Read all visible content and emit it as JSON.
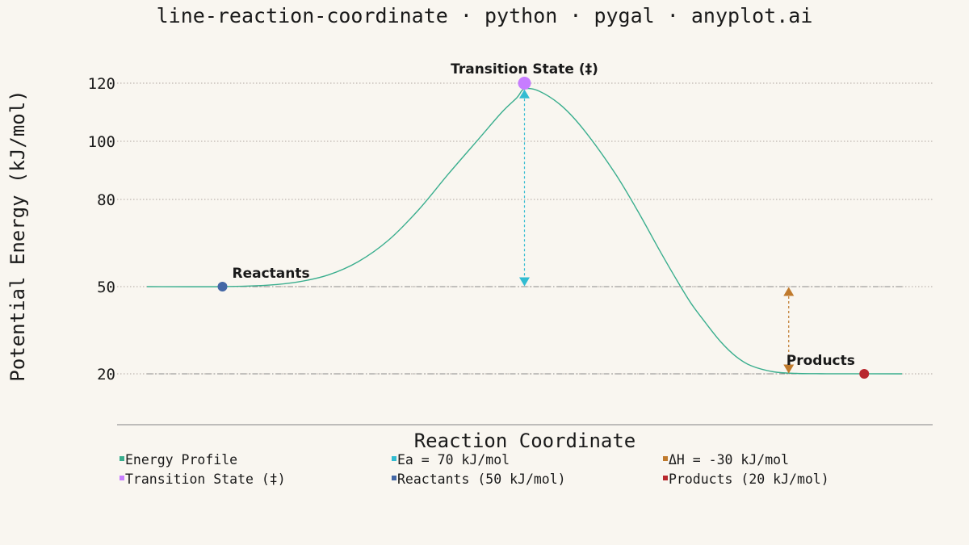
{
  "title": "line-reaction-coordinate · python · pygal · anyplot.ai",
  "chart_data": {
    "type": "line",
    "title": "line-reaction-coordinate · python · pygal · anyplot.ai",
    "xlabel": "Reaction Coordinate",
    "ylabel": "Potential Energy (kJ/mol)",
    "x_ticks_shown": false,
    "xlim": [
      0,
      1
    ],
    "ylim": [
      3,
      127
    ],
    "yticks": [
      20,
      50,
      80,
      100,
      120
    ],
    "grid": "horizontal dotted",
    "legend_position": "bottom",
    "series": [
      {
        "name": "Energy Profile",
        "color": "#3aae8e",
        "kind": "curve",
        "points": [
          [
            0.0,
            50.0
          ],
          [
            0.1,
            50.0
          ],
          [
            0.16,
            50.5
          ],
          [
            0.2,
            51.6
          ],
          [
            0.24,
            54.0
          ],
          [
            0.28,
            58.6
          ],
          [
            0.32,
            66.0
          ],
          [
            0.36,
            76.5
          ],
          [
            0.4,
            89.0
          ],
          [
            0.44,
            101.0
          ],
          [
            0.47,
            110.0
          ],
          [
            0.49,
            115.0
          ],
          [
            0.5,
            118.0
          ],
          [
            0.52,
            117.2
          ],
          [
            0.55,
            112.0
          ],
          [
            0.58,
            103.5
          ],
          [
            0.62,
            89.0
          ],
          [
            0.65,
            76.0
          ],
          [
            0.68,
            62.0
          ],
          [
            0.7,
            53.0
          ],
          [
            0.72,
            44.5
          ],
          [
            0.74,
            37.5
          ],
          [
            0.76,
            31.0
          ],
          [
            0.78,
            26.0
          ],
          [
            0.8,
            22.8
          ],
          [
            0.83,
            20.7
          ],
          [
            0.86,
            20.15
          ],
          [
            0.9,
            20.02
          ],
          [
            1.0,
            20.0
          ]
        ]
      },
      {
        "name": "Ea = 70 kJ/mol",
        "color": "#32bcd1",
        "kind": "arrow",
        "x": 0.5,
        "from": 118,
        "to": 50
      },
      {
        "name": "ΔH = -30 kJ/mol",
        "color": "#c07a2c",
        "kind": "arrow",
        "x": 0.85,
        "from": 50,
        "to": 20
      },
      {
        "name": "Transition State (‡)",
        "color": "#c77dff",
        "kind": "point",
        "x": 0.5,
        "y": 120
      },
      {
        "name": "Reactants (50 kJ/mol)",
        "color": "#4467a6",
        "kind": "point",
        "x": 0.1,
        "y": 50
      },
      {
        "name": "Products (20 kJ/mol)",
        "color": "#b8282e",
        "kind": "point",
        "x": 0.95,
        "y": 20
      }
    ],
    "reference_lines": [
      50,
      20
    ],
    "annotations": [
      {
        "text": "Transition State (‡)",
        "x": 0.5,
        "y": 120
      },
      {
        "text": "Reactants",
        "x": 0.1,
        "y": 50
      },
      {
        "text": "Products",
        "x": 0.85,
        "y": 20
      }
    ]
  }
}
